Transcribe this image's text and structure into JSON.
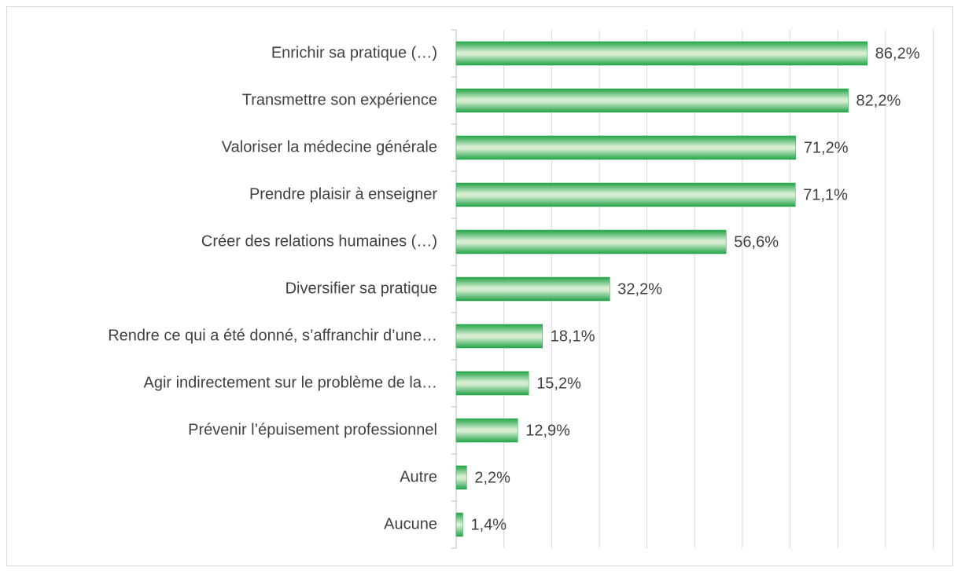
{
  "chart_data": {
    "type": "bar",
    "orientation": "horizontal",
    "categories": [
      "Enrichir sa pratique (…)",
      "Transmettre son expérience",
      "Valoriser la médecine générale",
      "Prendre plaisir à enseigner",
      "Créer des relations humaines (…)",
      "Diversifier sa pratique",
      "Rendre ce qui a été donné, s’affranchir d’une…",
      "Agir indirectement sur le problème de la…",
      "Prévenir l’épuisement professionnel",
      "Autre",
      "Aucune"
    ],
    "values": [
      86.2,
      82.2,
      71.2,
      71.1,
      56.6,
      32.2,
      18.1,
      15.2,
      12.9,
      2.2,
      1.4
    ],
    "value_labels": [
      "86,2%",
      "82,2%",
      "71,2%",
      "71,1%",
      "56,6%",
      "32,2%",
      "18,1%",
      "15,2%",
      "12,9%",
      "2,2%",
      "1,4%"
    ],
    "color": "#22a34a",
    "xlim": [
      0,
      100
    ],
    "xticks": [
      0,
      10,
      20,
      30,
      40,
      50,
      60,
      70,
      80,
      90,
      100
    ],
    "grid": true
  }
}
